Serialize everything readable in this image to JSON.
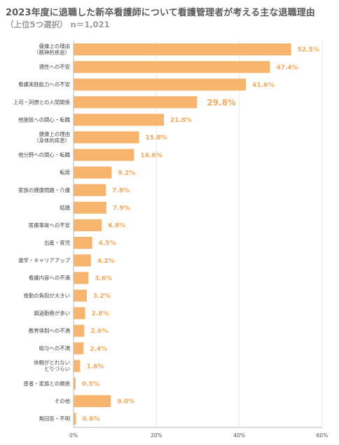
{
  "title": "2023年度に退職した新卒看護師について看護管理者が考える主な退職理由",
  "subtitle": "（上位5つ選択） n＝1,021",
  "colors": {
    "bar": "#f7b46e",
    "value_label": "#f3a85a",
    "axis": "#bbbbbb",
    "grid": "#e6e6e6"
  },
  "chart_data": {
    "type": "bar",
    "orientation": "horizontal",
    "categories": [
      [
        "健康上の理由",
        "（精神的疾患）"
      ],
      [
        "適性への不安"
      ],
      [
        "看護実践能力への不安"
      ],
      [
        "上司・同僚との人間関係"
      ],
      [
        "他施設への関心・転職"
      ],
      [
        "健康上の理由",
        "（身体的疾患）"
      ],
      [
        "他分野への関心・転職"
      ],
      [
        "転居"
      ],
      [
        "家族の健康問題・介護"
      ],
      [
        "結婚"
      ],
      [
        "医療事故への不安"
      ],
      [
        "出産・育児"
      ],
      [
        "進学・キャリアアップ"
      ],
      [
        "看護内容への不満"
      ],
      [
        "夜勤の負担が大きい"
      ],
      [
        "超過勤務が多い"
      ],
      [
        "教育体制への不満"
      ],
      [
        "給与への不満"
      ],
      [
        "休暇がとれない",
        "とりづらい"
      ],
      [
        "患者・家族との関係"
      ],
      [
        "その他"
      ],
      [
        "無回答・不明"
      ]
    ],
    "values": [
      52.5,
      47.4,
      41.6,
      29.8,
      21.8,
      15.8,
      14.6,
      9.2,
      7.8,
      7.9,
      6.8,
      4.5,
      4.2,
      3.6,
      3.2,
      2.8,
      2.6,
      2.4,
      1.6,
      0.5,
      9.0,
      0.6
    ],
    "value_labels": [
      "52.5%",
      "47.4%",
      "41.6%",
      "29.8%",
      "21.8%",
      "15.8%",
      "14.6%",
      "9.2%",
      "7.8%",
      "7.9%",
      "6.8%",
      "4.5%",
      "4.2%",
      "3.6%",
      "3.2%",
      "2.8%",
      "2.6%",
      "2.4%",
      "1.6%",
      "0.5%",
      "9.0%",
      "0.6%"
    ],
    "emphasized_index": 3,
    "x_ticks": [
      0,
      20,
      40,
      60
    ],
    "x_tick_labels": [
      "0%",
      "20%",
      "40%",
      "60%"
    ],
    "xlim": [
      0,
      60
    ],
    "grid": true,
    "legend": "none"
  }
}
